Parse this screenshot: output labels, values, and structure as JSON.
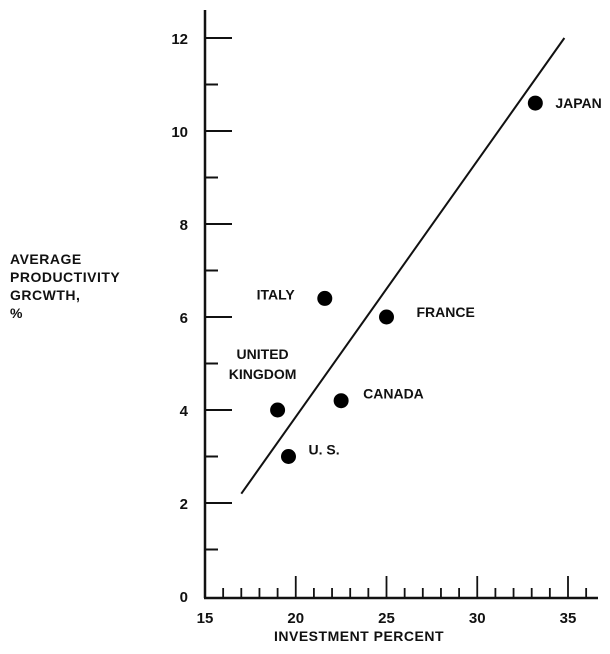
{
  "chart_data": {
    "type": "scatter",
    "title": "",
    "xlabel": "INVESTMENT PERCENT",
    "ylabel_lines": [
      "AVERAGE",
      "PRODUCTIVITY",
      "GRCWTH,",
      "%"
    ],
    "xlim": [
      15,
      37
    ],
    "ylim": [
      0,
      13
    ],
    "x_ticks": [
      15,
      20,
      25,
      30,
      35
    ],
    "y_ticks": [
      0,
      2,
      4,
      6,
      8,
      10,
      12
    ],
    "grid": false,
    "points": [
      {
        "label": "JAPAN",
        "x": 33.2,
        "y": 10.6
      },
      {
        "label": "ITALY",
        "x": 21.6,
        "y": 6.4
      },
      {
        "label": "FRANCE",
        "x": 25.0,
        "y": 6.0
      },
      {
        "label": "UNITED\nKINGDOM",
        "x": 19.0,
        "y": 4.0
      },
      {
        "label": "CANADA",
        "x": 22.5,
        "y": 4.2
      },
      {
        "label": "U. S.",
        "x": 19.6,
        "y": 3.0
      }
    ],
    "trend_line": {
      "x": [
        17.0,
        34.8
      ],
      "y": [
        2.2,
        12.0
      ]
    }
  }
}
